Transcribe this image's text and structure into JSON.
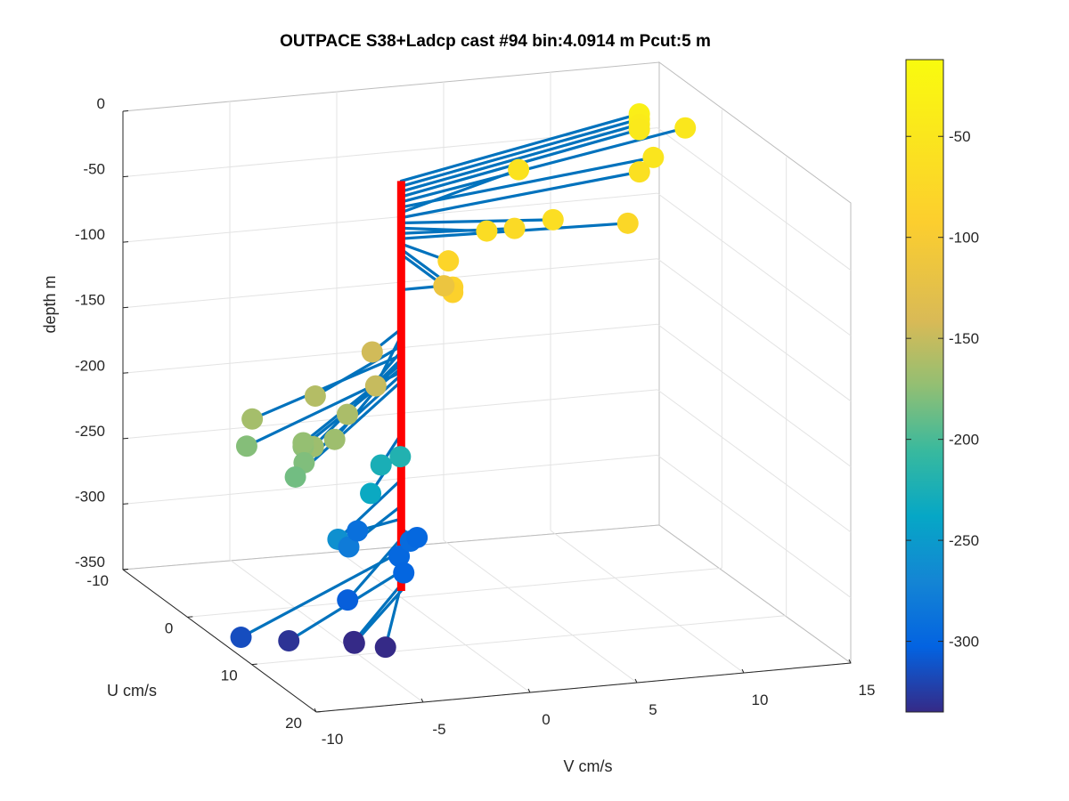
{
  "chart_data": {
    "type": "scatter",
    "title": "OUTPACE S38+Ladcp cast #94 bin:4.0914 m  Pcut:5 m",
    "xlabel": "V cm/s",
    "ylabel": "U cm/s",
    "zlabel": "depth m",
    "x_ticks": [
      "-10",
      "-5",
      "0",
      "5",
      "10",
      "15"
    ],
    "y_ticks": [
      "-10",
      "0",
      "10",
      "20"
    ],
    "z_ticks": [
      "0",
      "-50",
      "-100",
      "-150",
      "-200",
      "-250",
      "-300",
      "-350"
    ],
    "xlim": [
      -10,
      15
    ],
    "ylim": [
      -10,
      20
    ],
    "zlim": [
      -350,
      0
    ],
    "grid": true,
    "colormap": "parula",
    "colorbar": {
      "range": [
        -335,
        -12
      ],
      "ticks": [
        "-50",
        "-100",
        "-150",
        "-200",
        "-250",
        "-300"
      ]
    },
    "center_line_color": "#ff0000",
    "vector_color": "#0072bd",
    "points": [
      {
        "v": 13.7,
        "u": -8.5,
        "depth": -32
      },
      {
        "v": 13.7,
        "u": -8.5,
        "depth": -36
      },
      {
        "v": 13.7,
        "u": -8.5,
        "depth": -40
      },
      {
        "v": 13.7,
        "u": -8.5,
        "depth": -44
      },
      {
        "v": 16.0,
        "u": -9.0,
        "depth": -48
      },
      {
        "v": 13.3,
        "u": -5.0,
        "depth": -52
      },
      {
        "v": 7.3,
        "u": -6.0,
        "depth": -56
      },
      {
        "v": 12.5,
        "u": -4.5,
        "depth": -60
      },
      {
        "v": 6.5,
        "u": 2.0,
        "depth": -64
      },
      {
        "v": 3.4,
        "u": 2.0,
        "depth": -68
      },
      {
        "v": 5.0,
        "u": 1.0,
        "depth": -72
      },
      {
        "v": 10.3,
        "u": 1.0,
        "depth": -76
      },
      {
        "v": 1.0,
        "u": 4.0,
        "depth": -80
      },
      {
        "v": 0.0,
        "u": 8.0,
        "depth": -84
      },
      {
        "v": 0.0,
        "u": 8.0,
        "depth": -88
      },
      {
        "v": 2.0,
        "u": 0.0,
        "depth": -115
      },
      {
        "v": -2.5,
        "u": 3.8,
        "depth": -145
      },
      {
        "v": -3.9,
        "u": 9.0,
        "depth": -150
      },
      {
        "v": -6.4,
        "u": 7.9,
        "depth": -158
      },
      {
        "v": -5.8,
        "u": 10.9,
        "depth": -162
      },
      {
        "v": -9.8,
        "u": 9.4,
        "depth": -165
      },
      {
        "v": -8.6,
        "u": 14.9,
        "depth": -168
      },
      {
        "v": -7.3,
        "u": 13.9,
        "depth": -168
      },
      {
        "v": -8.5,
        "u": 13.0,
        "depth": -175
      },
      {
        "v": -8.5,
        "u": 13.0,
        "depth": -172
      },
      {
        "v": -10.6,
        "u": 11.2,
        "depth": -178
      },
      {
        "v": -9.0,
        "u": 14.8,
        "depth": -180
      },
      {
        "v": -9.8,
        "u": 16.1,
        "depth": -185
      },
      {
        "v": -1.7,
        "u": 5.5,
        "depth": -220
      },
      {
        "v": -2.6,
        "u": 5.5,
        "depth": -225
      },
      {
        "v": -3.9,
        "u": 8.2,
        "depth": -235
      },
      {
        "v": -6.0,
        "u": 10.1,
        "depth": -260
      },
      {
        "v": -4.5,
        "u": 6.8,
        "depth": -280
      },
      {
        "v": -2.5,
        "u": 1.5,
        "depth": -290
      },
      {
        "v": -1.6,
        "u": 5.0,
        "depth": -298
      },
      {
        "v": -2.2,
        "u": 7.7,
        "depth": -300
      },
      {
        "v": -5.7,
        "u": 10.6,
        "depth": -305
      },
      {
        "v": -0.5,
        "u": 3.1,
        "depth": -295
      },
      {
        "v": 0.2,
        "u": 1.8,
        "depth": -298
      },
      {
        "v": -11.5,
        "u": 13.3,
        "depth": -315
      },
      {
        "v": -8.6,
        "u": 11.1,
        "depth": -330
      },
      {
        "v": -5.2,
        "u": 9.9,
        "depth": -340
      },
      {
        "v": -4.9,
        "u": 9.0,
        "depth": -345
      },
      {
        "v": -4.2,
        "u": 11.5,
        "depth": -340
      }
    ]
  }
}
